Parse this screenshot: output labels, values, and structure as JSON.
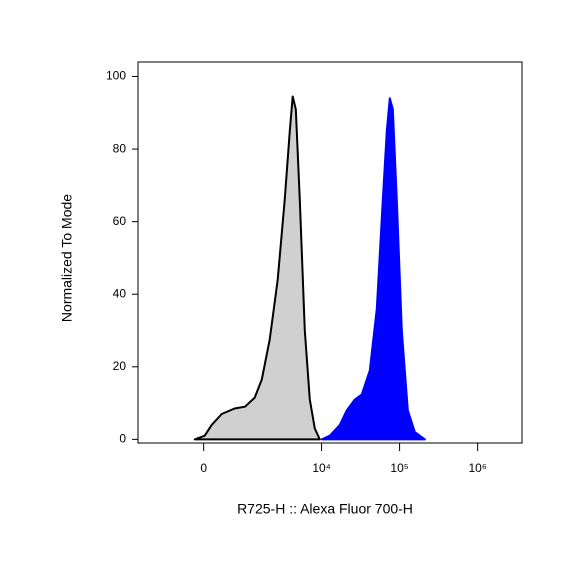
{
  "chart_data": {
    "type": "histogram-overlay",
    "xlabel": "R725-H :: Alexa Fluor 700-H",
    "ylabel": "Normalized To Mode",
    "xscale": "biex",
    "xlim": [
      -2100,
      3700000
    ],
    "xticks": [
      0,
      {
        "value": 10000,
        "label": "10⁴"
      },
      {
        "value": 100000,
        "label": "10⁵"
      },
      {
        "value": 1000000,
        "label": "10⁶"
      }
    ],
    "ylim": [
      -1,
      104
    ],
    "yticks": [
      0,
      20,
      40,
      60,
      80,
      100
    ],
    "series": [
      {
        "color": "#d0d0d0",
        "edge": "#000000",
        "x": [
          -166,
          18,
          147,
          344,
          646,
          955,
          1325,
          1660,
          2126,
          2710,
          3343,
          3893,
          4252,
          4654,
          5241,
          6081,
          7051,
          8176,
          9480
        ],
        "values": [
          0,
          1,
          4,
          7,
          8.5,
          9,
          11.5,
          16.5,
          27.5,
          44,
          66,
          85,
          94.5,
          91,
          66,
          30,
          11,
          3,
          0
        ]
      },
      {
        "color": "#0000ff",
        "edge": "#0000ff",
        "x": [
          10060,
          12750,
          17120,
          21070,
          26700,
          32750,
          41470,
          51050,
          60930,
          68540,
          74960,
          81890,
          92140,
          106850,
          127500,
          156720,
          211230
        ],
        "values": [
          0,
          1,
          4,
          8,
          11,
          12.4,
          19,
          36,
          66,
          85,
          94,
          91,
          66,
          30,
          8,
          2,
          0
        ]
      }
    ]
  }
}
